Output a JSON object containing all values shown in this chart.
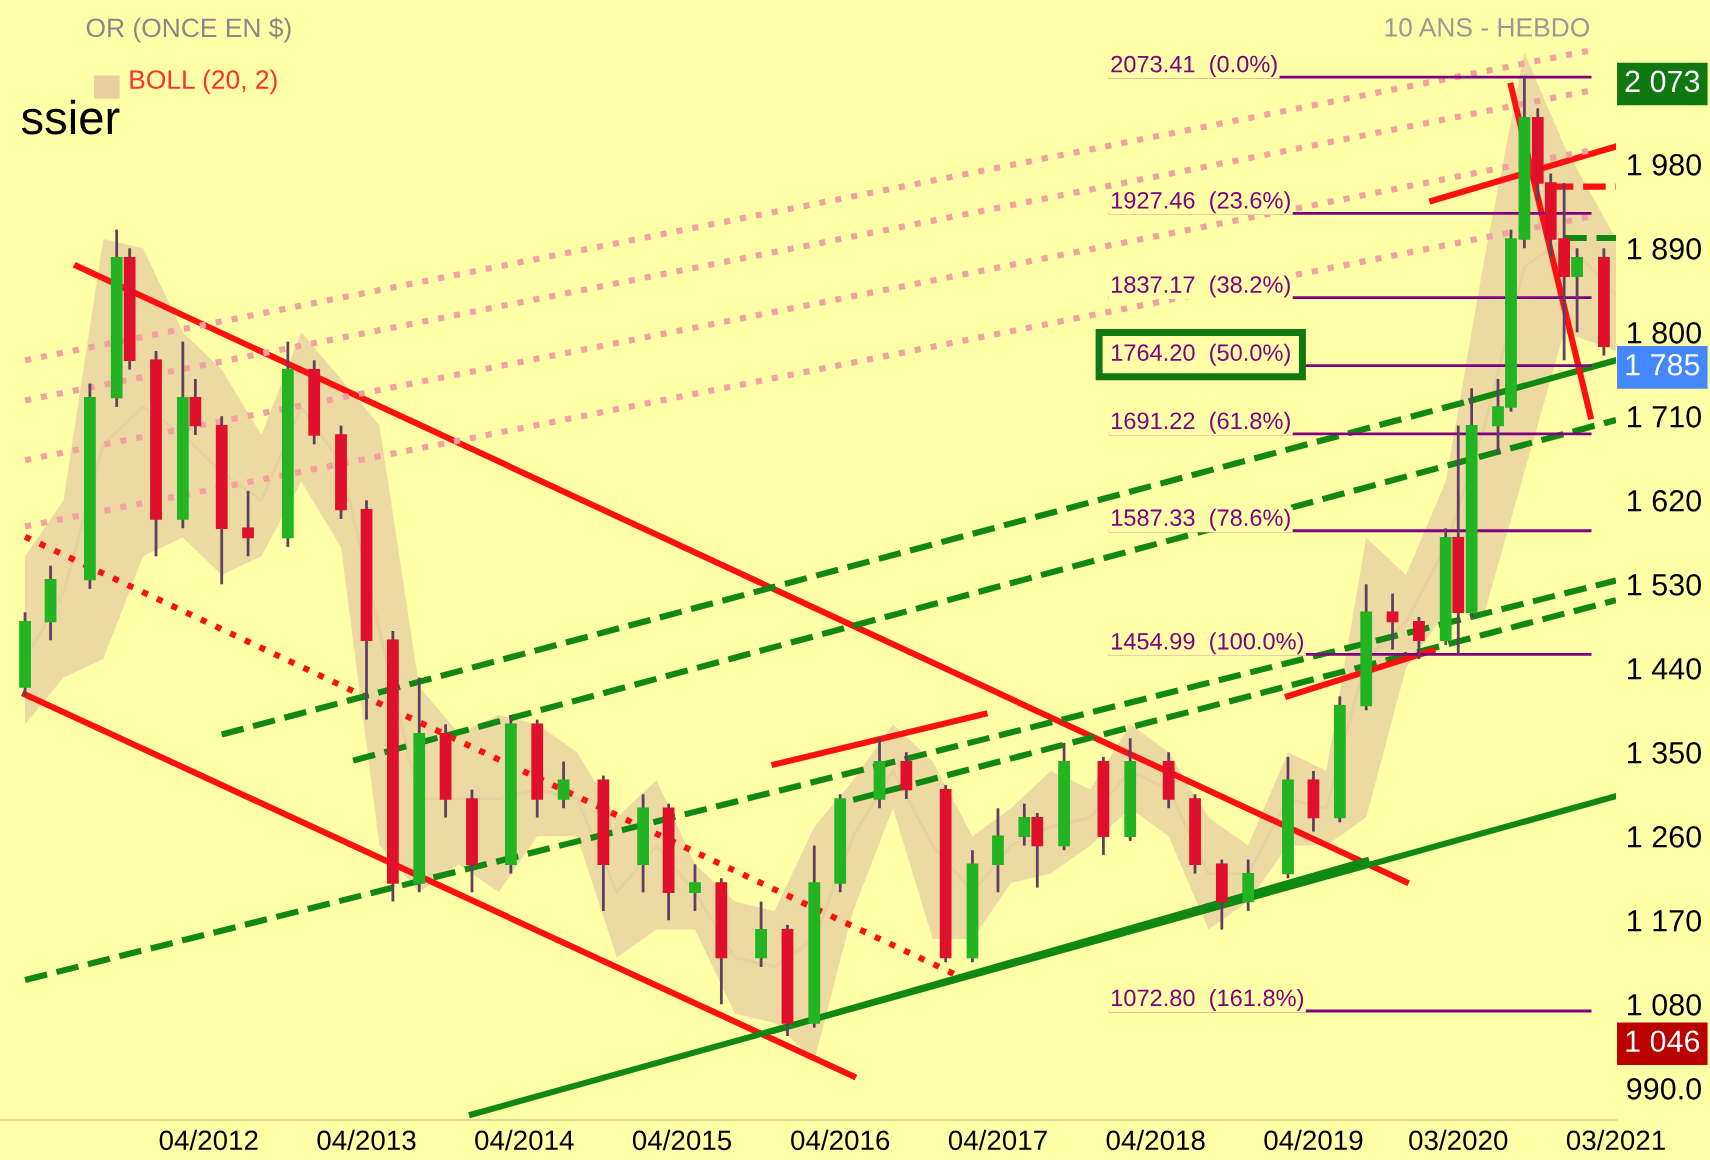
{
  "chart_data": {
    "type": "candlestick",
    "title": "OR (ONCE EN $)",
    "subtitle": "10 ANS - HEBDO",
    "x": [
      "2011-02",
      "2011-04",
      "2011-07",
      "2011-09",
      "2011-10",
      "2011-12",
      "2012-02",
      "2012-03",
      "2012-05",
      "2012-07",
      "2012-10",
      "2012-12",
      "2013-02",
      "2013-04",
      "2013-06",
      "2013-08",
      "2013-10",
      "2013-12",
      "2014-03",
      "2014-05",
      "2014-07",
      "2014-10",
      "2015-01",
      "2015-03",
      "2015-05",
      "2015-07",
      "2015-10",
      "2015-12",
      "2016-02",
      "2016-04",
      "2016-07",
      "2016-09",
      "2016-12",
      "2017-02",
      "2017-04",
      "2017-06",
      "2017-07",
      "2017-09",
      "2017-12",
      "2018-02",
      "2018-05",
      "2018-07",
      "2018-09",
      "2018-11",
      "2019-02",
      "2019-04",
      "2019-06",
      "2019-08",
      "2019-10",
      "2019-12",
      "2020-02",
      "2020-03",
      "2020-04",
      "2020-06",
      "2020-07",
      "2020-08",
      "2020-09",
      "2020-10",
      "2020-11",
      "2020-12",
      "2021-02"
    ],
    "ohlc": [
      [
        1420,
        1500,
        1410,
        1490
      ],
      [
        1490,
        1550,
        1470,
        1535
      ],
      [
        1535,
        1745,
        1525,
        1730
      ],
      [
        1730,
        1910,
        1720,
        1880
      ],
      [
        1880,
        1890,
        1760,
        1770
      ],
      [
        1770,
        1780,
        1560,
        1600
      ],
      [
        1600,
        1790,
        1590,
        1730
      ],
      [
        1730,
        1750,
        1690,
        1700
      ],
      [
        1700,
        1710,
        1530,
        1590
      ],
      [
        1590,
        1630,
        1560,
        1580
      ],
      [
        1580,
        1790,
        1570,
        1760
      ],
      [
        1760,
        1770,
        1680,
        1690
      ],
      [
        1690,
        1700,
        1600,
        1610
      ],
      [
        1610,
        1620,
        1385,
        1470
      ],
      [
        1470,
        1480,
        1190,
        1210
      ],
      [
        1210,
        1430,
        1200,
        1370
      ],
      [
        1370,
        1380,
        1280,
        1300
      ],
      [
        1300,
        1310,
        1200,
        1230
      ],
      [
        1230,
        1390,
        1220,
        1380
      ],
      [
        1380,
        1385,
        1280,
        1300
      ],
      [
        1300,
        1340,
        1290,
        1320
      ],
      [
        1320,
        1325,
        1180,
        1230
      ],
      [
        1230,
        1305,
        1200,
        1290
      ],
      [
        1290,
        1295,
        1170,
        1200
      ],
      [
        1200,
        1230,
        1180,
        1210
      ],
      [
        1210,
        1215,
        1080,
        1130
      ],
      [
        1130,
        1190,
        1120,
        1160
      ],
      [
        1160,
        1165,
        1046,
        1060
      ],
      [
        1060,
        1250,
        1055,
        1210
      ],
      [
        1210,
        1305,
        1200,
        1300
      ],
      [
        1300,
        1365,
        1290,
        1340
      ],
      [
        1340,
        1350,
        1300,
        1310
      ],
      [
        1310,
        1315,
        1125,
        1130
      ],
      [
        1130,
        1245,
        1125,
        1230
      ],
      [
        1230,
        1290,
        1200,
        1260
      ],
      [
        1260,
        1295,
        1250,
        1280
      ],
      [
        1280,
        1285,
        1205,
        1250
      ],
      [
        1250,
        1360,
        1245,
        1340
      ],
      [
        1340,
        1345,
        1240,
        1260
      ],
      [
        1260,
        1365,
        1255,
        1340
      ],
      [
        1340,
        1350,
        1290,
        1300
      ],
      [
        1300,
        1305,
        1220,
        1230
      ],
      [
        1230,
        1235,
        1160,
        1190
      ],
      [
        1190,
        1235,
        1180,
        1220
      ],
      [
        1220,
        1345,
        1215,
        1320
      ],
      [
        1320,
        1330,
        1265,
        1280
      ],
      [
        1280,
        1410,
        1275,
        1400
      ],
      [
        1400,
        1530,
        1395,
        1500
      ],
      [
        1500,
        1520,
        1460,
        1490
      ],
      [
        1490,
        1495,
        1450,
        1470
      ],
      [
        1470,
        1590,
        1465,
        1580
      ],
      [
        1580,
        1700,
        1455,
        1500
      ],
      [
        1500,
        1740,
        1495,
        1700
      ],
      [
        1700,
        1750,
        1670,
        1720
      ],
      [
        1720,
        1910,
        1715,
        1900
      ],
      [
        1900,
        2073,
        1890,
        2030
      ],
      [
        2030,
        2040,
        1940,
        1960
      ],
      [
        1960,
        1970,
        1880,
        1900
      ],
      [
        1900,
        1960,
        1770,
        1860
      ],
      [
        1860,
        1890,
        1800,
        1880
      ],
      [
        1880,
        1890,
        1775,
        1785
      ]
    ],
    "colors": [
      "#22b422",
      "#22b422",
      "#22b422",
      "#22b422",
      "#e0102a",
      "#e0102a",
      "#22b422",
      "#e0102a",
      "#e0102a",
      "#e0102a",
      "#22b422",
      "#e0102a",
      "#e0102a",
      "#e0102a",
      "#e0102a",
      "#22b422",
      "#e0102a",
      "#e0102a",
      "#22b422",
      "#e0102a",
      "#22b422",
      "#e0102a",
      "#22b422",
      "#e0102a",
      "#22b422",
      "#e0102a",
      "#22b422",
      "#e0102a",
      "#22b422",
      "#22b422",
      "#22b422",
      "#e0102a",
      "#e0102a",
      "#22b422",
      "#22b422",
      "#22b422",
      "#e0102a",
      "#22b422",
      "#e0102a",
      "#22b422",
      "#e0102a",
      "#e0102a",
      "#e0102a",
      "#22b422",
      "#22b422",
      "#e0102a",
      "#22b422",
      "#22b422",
      "#e0102a",
      "#e0102a",
      "#22b422",
      "#e0102a",
      "#22b422",
      "#22b422",
      "#22b422",
      "#22b422",
      "#e0102a",
      "#e0102a",
      "#e0102a",
      "#22b422",
      "#e0102a"
    ],
    "series": [
      {
        "name": "BOLL (20, 2)",
        "type": "line",
        "color": "#e8cfa0",
        "x": [
          "2011-02",
          "2011-05",
          "2011-08",
          "2011-11",
          "2012-02",
          "2012-05",
          "2012-08",
          "2012-11",
          "2013-02",
          "2013-05",
          "2013-08",
          "2013-11",
          "2014-02",
          "2014-05",
          "2014-08",
          "2014-11",
          "2015-02",
          "2015-05",
          "2015-08",
          "2015-11",
          "2016-02",
          "2016-05",
          "2016-08",
          "2016-11",
          "2017-02",
          "2017-05",
          "2017-08",
          "2017-11",
          "2018-02",
          "2018-05",
          "2018-08",
          "2018-11",
          "2019-02",
          "2019-05",
          "2019-08",
          "2019-11",
          "2020-02",
          "2020-05",
          "2020-08",
          "2020-11",
          "2021-03"
        ],
        "values": [
          1450,
          1520,
          1680,
          1720,
          1690,
          1650,
          1620,
          1720,
          1660,
          1480,
          1300,
          1300,
          1300,
          1310,
          1300,
          1200,
          1250,
          1200,
          1130,
          1120,
          1150,
          1260,
          1330,
          1250,
          1200,
          1250,
          1270,
          1280,
          1330,
          1310,
          1220,
          1220,
          1300,
          1290,
          1450,
          1490,
          1570,
          1700,
          1870,
          1900,
          1840
        ],
        "lower": [
          1380,
          1430,
          1450,
          1560,
          1580,
          1540,
          1560,
          1640,
          1570,
          1250,
          1200,
          1230,
          1200,
          1260,
          1260,
          1130,
          1160,
          1160,
          1070,
          1060,
          1020,
          1180,
          1290,
          1150,
          1150,
          1210,
          1220,
          1250,
          1290,
          1260,
          1160,
          1190,
          1250,
          1250,
          1280,
          1440,
          1500,
          1500,
          1650,
          1800,
          1780
        ],
        "upper": [
          1560,
          1620,
          1900,
          1890,
          1800,
          1760,
          1690,
          1800,
          1750,
          1700,
          1420,
          1370,
          1390,
          1380,
          1350,
          1280,
          1320,
          1230,
          1190,
          1180,
          1270,
          1320,
          1380,
          1340,
          1260,
          1290,
          1330,
          1310,
          1380,
          1350,
          1280,
          1250,
          1350,
          1330,
          1580,
          1540,
          1640,
          1880,
          2100,
          2000,
          1900
        ]
      },
      {
        "type": "line",
        "color": "#ff1010",
        "line_style": "solid",
        "x": [
          "2011-06",
          "2019-11"
        ],
        "values": [
          1871,
          1211
        ]
      },
      {
        "type": "line",
        "color": "#ff1010",
        "line_style": "solid",
        "x": [
          "2011-02",
          "2016-05"
        ],
        "values": [
          1412,
          1003
        ]
      },
      {
        "type": "line",
        "color": "#ff1010",
        "line_style": "dotted",
        "x": [
          "2011-02",
          "2017-01"
        ],
        "values": [
          1581,
          1110
        ]
      },
      {
        "type": "line",
        "color": "#118811",
        "line_style": "solid",
        "x": [
          "2013-12",
          "2021-03"
        ],
        "values": [
          962,
          1303
        ]
      },
      {
        "type": "line",
        "color": "#118811",
        "line_style": "solid",
        "x": [
          "2015-11",
          "2019-08"
        ],
        "values": [
          1052,
          1234
        ]
      },
      {
        "type": "line",
        "color": "#118811",
        "line_style": "dashed",
        "x": [
          "2011-02",
          "2021-03"
        ],
        "values": [
          1106,
          1534
        ]
      },
      {
        "type": "line",
        "color": "#118811",
        "line_style": "dashed",
        "x": [
          "2012-05",
          "2020-04"
        ],
        "values": [
          1369,
          1727
        ]
      },
      {
        "type": "line",
        "color": "#118811",
        "line_style": "solid",
        "x": [
          "2020-04",
          "2021-03"
        ],
        "values": [
          1727,
          1770
        ]
      },
      {
        "type": "line",
        "color": "#118811",
        "line_style": "dashed",
        "x": [
          "2013-03",
          "2021-03"
        ],
        "values": [
          1341,
          1706
        ]
      },
      {
        "type": "line",
        "color": "#118811",
        "line_style": "dashed",
        "x": [
          "2016-05",
          "2021-03"
        ],
        "values": [
          1299,
          1513
        ]
      },
      {
        "type": "line",
        "color": "#ff1010",
        "line_style": "solid",
        "x": [
          "2015-11",
          "2017-03"
        ],
        "values": [
          1337,
          1391
        ]
      },
      {
        "type": "line",
        "color": "#ff1010",
        "line_style": "solid",
        "x": [
          "2019-02",
          "2020-01"
        ],
        "values": [
          1410,
          1459
        ]
      },
      {
        "type": "line",
        "color": "#ff1010",
        "line_style": "solid",
        "x": [
          "2020-01",
          "2021-03"
        ],
        "values": [
          1941,
          1999
        ]
      },
      {
        "type": "line",
        "color": "#ff1010",
        "line_style": "solid",
        "x": [
          "2020-07",
          "2021-01"
        ],
        "values": [
          2064,
          1710
        ]
      },
      {
        "type": "line",
        "color": "#ff1010",
        "line_style": "dashed",
        "x": [
          "2020-10",
          "2021-03"
        ],
        "values": [
          1956,
          1956
        ]
      },
      {
        "type": "line",
        "color": "#118811",
        "line_style": "dashed",
        "x": [
          "2020-11",
          "2021-03"
        ],
        "values": [
          1901,
          1901
        ]
      },
      {
        "type": "line",
        "color": "#f4a0a0",
        "line_style": "dotted",
        "x": [
          "2011-02",
          "2021-01"
        ],
        "values": [
          1592,
          1924
        ]
      },
      {
        "type": "line",
        "color": "#f4a0a0",
        "line_style": "dotted",
        "x": [
          "2011-02",
          "2021-01"
        ],
        "values": [
          1663,
          1995
        ]
      },
      {
        "type": "line",
        "color": "#f4a0a0",
        "line_style": "dotted",
        "x": [
          "2011-02",
          "2021-01"
        ],
        "values": [
          1727,
          2059
        ]
      },
      {
        "type": "line",
        "color": "#f4a0a0",
        "line_style": "dotted",
        "x": [
          "2011-02",
          "2021-01"
        ],
        "values": [
          1770,
          2102
        ]
      }
    ],
    "ref_lines": [
      {
        "axis": "y",
        "value": 2073.41,
        "label": "2073.41  (0.0%)",
        "color": "#800080"
      },
      {
        "axis": "y",
        "value": 1927.46,
        "label": "1927.46  (23.6%)",
        "color": "#800080"
      },
      {
        "axis": "y",
        "value": 1837.17,
        "label": "1837.17  (38.2%)",
        "color": "#800080"
      },
      {
        "axis": "y",
        "value": 1764.2,
        "label": "1764.20  (50.0%)",
        "color": "#800080"
      },
      {
        "axis": "y",
        "value": 1691.22,
        "label": "1691.22  (61.8%)",
        "color": "#800080"
      },
      {
        "axis": "y",
        "value": 1587.33,
        "label": "1587.33  (78.6%)",
        "color": "#800080"
      },
      {
        "axis": "y",
        "value": 1454.99,
        "label": "1454.99  (100.0%)",
        "color": "#800080"
      },
      {
        "axis": "y",
        "value": 1072.8,
        "label": "1072.80  (161.8%)",
        "color": "#800080"
      }
    ],
    "annotations": [
      "ssier",
      "2 073",
      "1 785",
      "1 046"
    ],
    "xlim": [
      "2010-12-05",
      "2021-03-01"
    ],
    "ylim": [
      956,
      2156
    ],
    "xticks": [
      {
        "value": "2012-04-01",
        "label": "04/2012"
      },
      {
        "value": "2013-04-01",
        "label": "04/2013"
      },
      {
        "value": "2014-04-01",
        "label": "04/2014"
      },
      {
        "value": "2015-04-01",
        "label": "04/2015"
      },
      {
        "value": "2016-04-01",
        "label": "04/2016"
      },
      {
        "value": "2017-04-01",
        "label": "04/2017"
      },
      {
        "value": "2018-04-01",
        "label": "04/2018"
      },
      {
        "value": "2019-04-01",
        "label": "04/2019"
      },
      {
        "value": "2020-03-01",
        "label": "03/2020"
      },
      {
        "value": "2021-03-01",
        "label": "03/2021"
      }
    ],
    "yticks": [
      {
        "value": 990,
        "label": "990.0"
      },
      {
        "value": 1080,
        "label": "1 080"
      },
      {
        "value": 1170,
        "label": "1 170"
      },
      {
        "value": 1260,
        "label": "1 260"
      },
      {
        "value": 1350,
        "label": "1 350"
      },
      {
        "value": 1440,
        "label": "1 440"
      },
      {
        "value": 1530,
        "label": "1 530"
      },
      {
        "value": 1620,
        "label": "1 620"
      },
      {
        "value": 1710,
        "label": "1 710"
      },
      {
        "value": 1800,
        "label": "1 800"
      },
      {
        "value": 1890,
        "label": "1 890"
      },
      {
        "value": 1980,
        "label": "1 980"
      }
    ],
    "grid": false,
    "legend": "top left"
  }
}
